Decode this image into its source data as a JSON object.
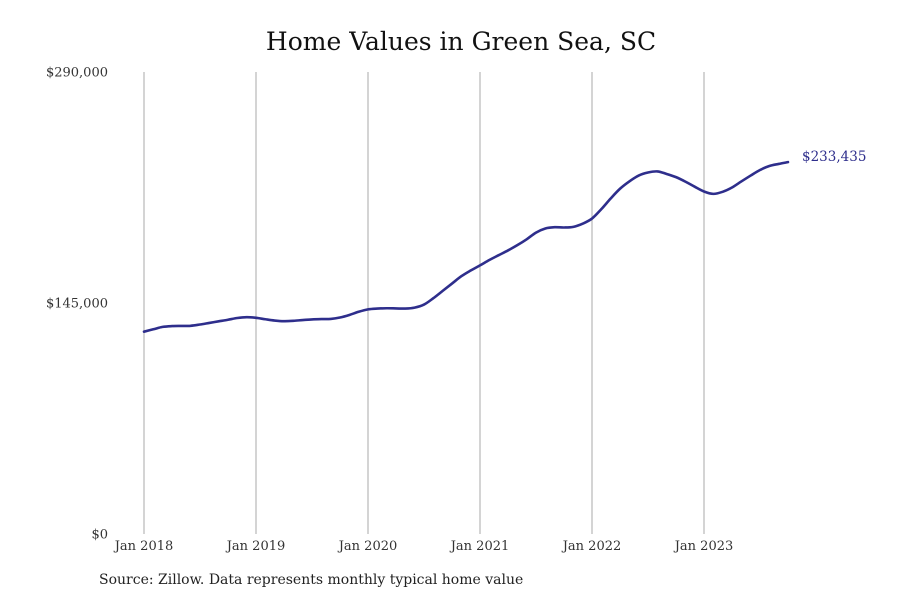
{
  "chart_data": {
    "type": "line",
    "title": "Home Values in Green Sea, SC",
    "xlabel": "",
    "ylabel": "",
    "source": "Source: Zillow. Data represents monthly typical home value",
    "ylim": [
      0,
      290000
    ],
    "yticks": [
      {
        "value": 0,
        "label": "$0"
      },
      {
        "value": 145000,
        "label": "$145,000"
      },
      {
        "value": 290000,
        "label": "$290,000"
      }
    ],
    "xticks": [
      {
        "value": "2018-01",
        "label": "Jan 2018"
      },
      {
        "value": "2019-01",
        "label": "Jan 2019"
      },
      {
        "value": "2020-01",
        "label": "Jan 2020"
      },
      {
        "value": "2021-01",
        "label": "Jan 2021"
      },
      {
        "value": "2022-01",
        "label": "Jan 2022"
      },
      {
        "value": "2023-01",
        "label": "Jan 2023"
      }
    ],
    "grid": {
      "vertical": true,
      "horizontal": false
    },
    "series": [
      {
        "color": "#2e2e8c",
        "end_label": "$233,435",
        "points": [
          [
            "2018-01",
            127000
          ],
          [
            "2018-02",
            128500
          ],
          [
            "2018-03",
            130000
          ],
          [
            "2018-04",
            130500
          ],
          [
            "2018-05",
            130600
          ],
          [
            "2018-06",
            130700
          ],
          [
            "2018-07",
            131500
          ],
          [
            "2018-08",
            132500
          ],
          [
            "2018-09",
            133500
          ],
          [
            "2018-10",
            134500
          ],
          [
            "2018-11",
            135600
          ],
          [
            "2018-12",
            136100
          ],
          [
            "2019-01",
            135700
          ],
          [
            "2019-02",
            134800
          ],
          [
            "2019-03",
            134000
          ],
          [
            "2019-04",
            133600
          ],
          [
            "2019-05",
            133800
          ],
          [
            "2019-06",
            134300
          ],
          [
            "2019-07",
            134700
          ],
          [
            "2019-08",
            134900
          ],
          [
            "2019-09",
            135000
          ],
          [
            "2019-10",
            135900
          ],
          [
            "2019-11",
            137500
          ],
          [
            "2019-12",
            139500
          ],
          [
            "2020-01",
            141000
          ],
          [
            "2020-02",
            141500
          ],
          [
            "2020-03",
            141700
          ],
          [
            "2020-04",
            141600
          ],
          [
            "2020-05",
            141500
          ],
          [
            "2020-06",
            142100
          ],
          [
            "2020-07",
            144000
          ],
          [
            "2020-08",
            148000
          ],
          [
            "2020-09",
            152600
          ],
          [
            "2020-10",
            157200
          ],
          [
            "2020-11",
            161800
          ],
          [
            "2020-12",
            165400
          ],
          [
            "2021-01",
            168600
          ],
          [
            "2021-02",
            172000
          ],
          [
            "2021-03",
            175000
          ],
          [
            "2021-04",
            178000
          ],
          [
            "2021-05",
            181300
          ],
          [
            "2021-06",
            185000
          ],
          [
            "2021-07",
            189200
          ],
          [
            "2021-08",
            191800
          ],
          [
            "2021-09",
            192600
          ],
          [
            "2021-10",
            192400
          ],
          [
            "2021-11",
            192800
          ],
          [
            "2021-12",
            194800
          ],
          [
            "2022-01",
            198000
          ],
          [
            "2022-02",
            203900
          ],
          [
            "2022-03",
            210600
          ],
          [
            "2022-04",
            216700
          ],
          [
            "2022-05",
            221300
          ],
          [
            "2022-06",
            225000
          ],
          [
            "2022-07",
            226900
          ],
          [
            "2022-08",
            227600
          ],
          [
            "2022-09",
            226000
          ],
          [
            "2022-10",
            224000
          ],
          [
            "2022-11",
            221200
          ],
          [
            "2022-12",
            218000
          ],
          [
            "2023-01",
            215000
          ],
          [
            "2023-02",
            213500
          ],
          [
            "2023-03",
            214800
          ],
          [
            "2023-04",
            217500
          ],
          [
            "2023-05",
            221300
          ],
          [
            "2023-06",
            225000
          ],
          [
            "2023-07",
            228500
          ],
          [
            "2023-08",
            231000
          ],
          [
            "2023-09",
            232300
          ],
          [
            "2023-10",
            233435
          ]
        ]
      }
    ]
  }
}
